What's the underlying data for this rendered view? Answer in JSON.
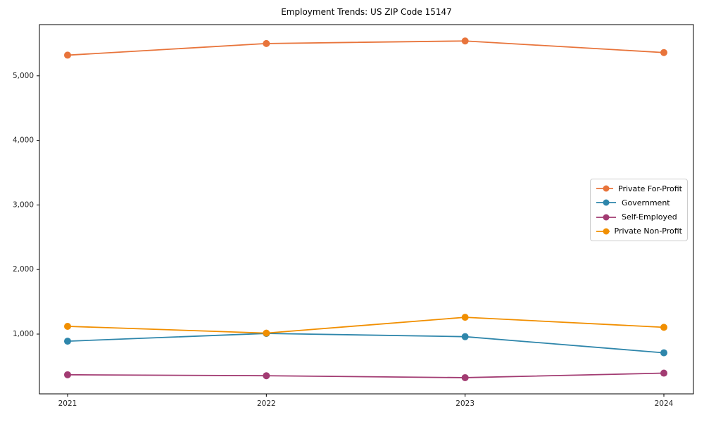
{
  "title": "Employment Trends: US ZIP Code 15147",
  "chart_data": {
    "type": "line",
    "x": [
      2021,
      2022,
      2023,
      2024
    ],
    "xtick_labels": [
      "2021",
      "2022",
      "2023",
      "2024"
    ],
    "series": [
      {
        "name": "Private For-Profit",
        "color": "#E8743B",
        "values": [
          5320,
          5500,
          5540,
          5360
        ]
      },
      {
        "name": "Government",
        "color": "#2E86AB",
        "values": [
          890,
          1010,
          960,
          710
        ]
      },
      {
        "name": "Self-Employed",
        "color": "#A23B72",
        "values": [
          370,
          355,
          325,
          395
        ]
      },
      {
        "name": "Private Non-Profit",
        "color": "#F18F01",
        "values": [
          1120,
          1015,
          1260,
          1105
        ]
      }
    ],
    "yticks": [
      1000,
      2000,
      3000,
      4000,
      5000
    ],
    "ytick_labels": [
      "1,000",
      "2,000",
      "3,000",
      "4,000",
      "5,000"
    ],
    "ylim": [
      74,
      5793
    ],
    "grid": false,
    "legend_position": "center right",
    "frame_color": "#000000",
    "background_color": "#ffffff"
  }
}
